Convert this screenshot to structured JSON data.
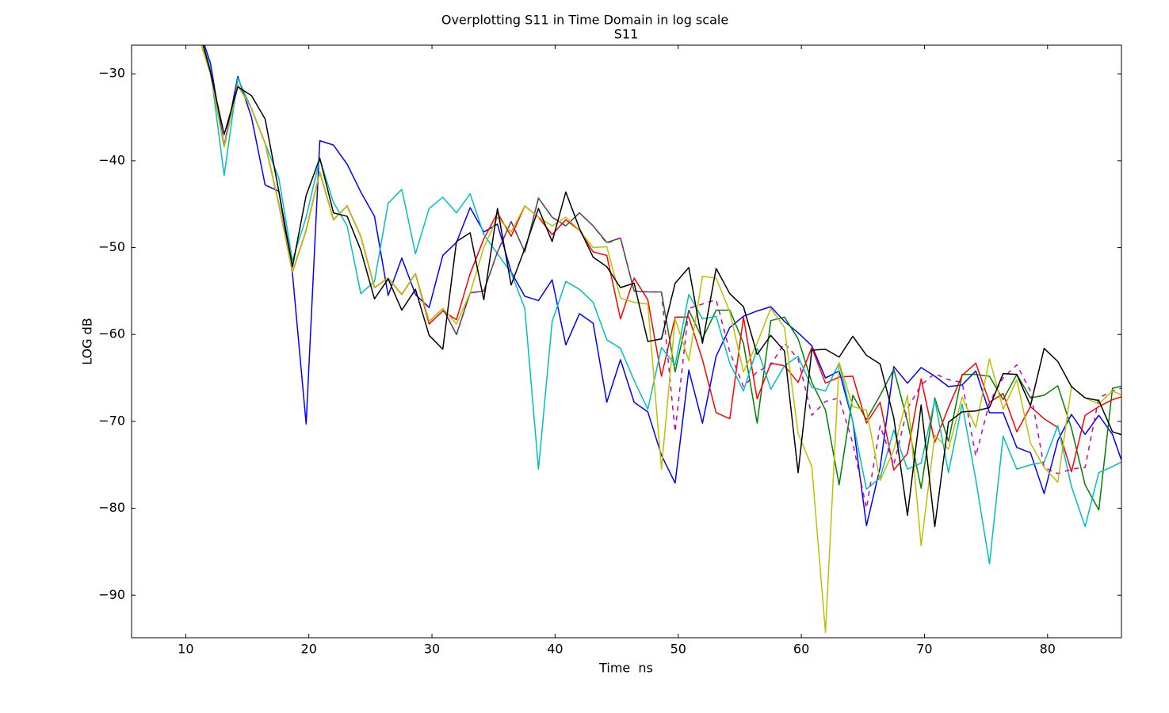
{
  "chart_data": {
    "type": "line",
    "suptitle": "Overplotting S11 in Time Domain in log scale",
    "title": "S11",
    "xlabel": "Time  ns",
    "ylabel": "LOG dB",
    "xlim": [
      5.6,
      86
    ],
    "ylim": [
      -94.9,
      -26.7
    ],
    "xticks": [
      10,
      20,
      30,
      40,
      50,
      60,
      70,
      80
    ],
    "yticks": [
      {
        "value": -30,
        "label": "−30"
      },
      {
        "value": -40,
        "label": "−40"
      },
      {
        "value": -50,
        "label": "−50"
      },
      {
        "value": -60,
        "label": "−60"
      },
      {
        "value": -70,
        "label": "−70"
      },
      {
        "value": -80,
        "label": "−80"
      },
      {
        "value": -90,
        "label": "−90"
      }
    ],
    "x": [
      10.9,
      12.01,
      13.12,
      14.23,
      15.34,
      16.45,
      17.56,
      18.67,
      19.78,
      20.89,
      22.0,
      23.11,
      24.22,
      25.33,
      26.44,
      27.55,
      28.66,
      29.77,
      30.88,
      31.99,
      33.1,
      34.21,
      35.32,
      36.43,
      37.54,
      38.65,
      39.76,
      40.87,
      41.98,
      43.09,
      44.2,
      45.31,
      46.42,
      47.53,
      48.64,
      49.75,
      50.86,
      51.97,
      53.08,
      54.19,
      55.3,
      56.41,
      57.52,
      58.63,
      59.74,
      60.85,
      61.96,
      63.07,
      64.18,
      65.29,
      66.4,
      67.51,
      68.62,
      69.73,
      70.84,
      71.95,
      73.06,
      74.17,
      75.28,
      76.39,
      77.5,
      78.61,
      79.72,
      80.83,
      81.94,
      83.05,
      84.16,
      85.27,
      86.38
    ],
    "series": [
      {
        "color": "#0000ff",
        "linestyle": "solid",
        "values": [
          -24,
          -28.8,
          -38.3,
          -30.3,
          -35,
          -42.8,
          -43.5,
          -53,
          -70.3,
          -37.7,
          -38.2,
          -40.4,
          -43.6,
          -46.4,
          -55.5,
          -51.2,
          -55.4,
          -56.9,
          -50.9,
          -49.4,
          -45.4,
          -48.2,
          -47.3,
          -52.8,
          -55.6,
          -56.1,
          -53.7,
          -61.2,
          -57.6,
          -58.7,
          -67.8,
          -62.9,
          -67.8,
          -68.9,
          -73.9,
          -77.1,
          -64.1,
          -70.2,
          -62.5,
          -59.2,
          -57.9,
          -57.3,
          -56.8,
          -58.5,
          -59.8,
          -61.3,
          -65,
          -64.2,
          -70,
          -82,
          -75.3,
          -63.7,
          -65.6,
          -63.8,
          -64.8,
          -66,
          -65.8,
          -64.2,
          -69,
          -69,
          -73,
          -73.6,
          -78.3,
          -72.2,
          -69.2,
          -71.5,
          -69.3,
          -71.5,
          -76
        ]
      },
      {
        "color": "#008000",
        "linestyle": "solid",
        "values": [
          -25,
          -30,
          -38.4,
          -31.3,
          -34,
          -38,
          -45,
          -52.8,
          -48,
          -41.3,
          -46.8,
          -45.2,
          -48.7,
          -54.6,
          -53.5,
          -55.4,
          -53,
          -58.5,
          -57,
          -60,
          -55.2,
          -55,
          -50.5,
          -47,
          -50.5,
          -44.3,
          -46.5,
          -47.5,
          -46,
          -47.5,
          -49.4,
          -48.9,
          -55,
          -55.1,
          -55.1,
          -64.3,
          -57.2,
          -60.5,
          -57.2,
          -57.2,
          -61,
          -70.2,
          -58.4,
          -58,
          -60.5,
          -65.5,
          -68.7,
          -77.3,
          -67,
          -69.8,
          -67,
          -64,
          -70,
          -77.7,
          -67.3,
          -72.3,
          -64.6,
          -64.6,
          -64.8,
          -67.5,
          -64.6,
          -67.3,
          -67,
          -65.9,
          -70.8,
          -77.3,
          -80.2,
          -66.2,
          -65.8
        ]
      },
      {
        "color": "#ff0000",
        "linestyle": "solid",
        "values": [
          -25,
          -30,
          -38.4,
          -31.3,
          -34,
          -38,
          -45,
          -52.8,
          -48,
          -41.3,
          -46.8,
          -45.2,
          -48.7,
          -54.6,
          -53.5,
          -55.4,
          -53,
          -58.8,
          -57.3,
          -58.3,
          -53,
          -49,
          -46,
          -48.7,
          -45.2,
          -46.5,
          -48.5,
          -46.8,
          -48,
          -50.5,
          -50.9,
          -58.2,
          -53.5,
          -56,
          -64.8,
          -58,
          -58,
          -62.9,
          -69,
          -69.7,
          -58,
          -67.4,
          -63.3,
          -63.6,
          -65.5,
          -61.5,
          -65.6,
          -64.9,
          -64.8,
          -70.2,
          -67.8,
          -75.6,
          -73.7,
          -65.1,
          -72.4,
          -68.4,
          -64.7,
          -63.3,
          -67.8,
          -66.8,
          -71.2,
          -68.3,
          -69.7,
          -70.7,
          -75.8,
          -69.3,
          -68.3,
          -67.5,
          -67
        ]
      },
      {
        "color": "#00bfbf",
        "linestyle": "solid",
        "values": [
          -24,
          -29.5,
          -41.7,
          -30.5,
          -34,
          -38,
          -42,
          -51.5,
          -46.5,
          -39.8,
          -44.8,
          -47.5,
          -55.3,
          -53.9,
          -44.9,
          -43.3,
          -50.7,
          -45.5,
          -44.2,
          -46,
          -43.8,
          -48.5,
          -50.7,
          -52.9,
          -57,
          -75.5,
          -58.5,
          -53.9,
          -54.8,
          -56.3,
          -60.6,
          -61.6,
          -65.3,
          -68.6,
          -61.5,
          -63.5,
          -55.4,
          -58.2,
          -57.9,
          -63.3,
          -66.5,
          -61.6,
          -66.3,
          -63.6,
          -62.5,
          -66.1,
          -66.5,
          -63.3,
          -70,
          -77.8,
          -76.5,
          -71,
          -75.5,
          -74.8,
          -67.5,
          -75.9,
          -68,
          -76.7,
          -86.4,
          -71.7,
          -75.5,
          -75,
          -74.7,
          -70.5,
          -77.5,
          -82.1,
          -75.9,
          -75.2,
          -74.4
        ]
      },
      {
        "color": "#bf00bf",
        "linestyle": "dashed",
        "values": [
          -25,
          -30,
          -38.4,
          -31.3,
          -34,
          -38,
          -45,
          -52.8,
          -48,
          -41.3,
          -46.8,
          -45.2,
          -48.7,
          -54.6,
          -53.5,
          -55.4,
          -53,
          -58.5,
          -57,
          -60,
          -55.2,
          -55,
          -50.5,
          -47,
          -50.5,
          -44.3,
          -46.5,
          -47.5,
          -46,
          -47.5,
          -49.5,
          -48.9,
          -55,
          -55.1,
          -55.1,
          -71.2,
          -57,
          -56.5,
          -56,
          -62,
          -66,
          -64.3,
          -63.5,
          -61,
          -62.8,
          -69.3,
          -67.7,
          -67.3,
          -72.5,
          -80,
          -70.5,
          -75,
          -68.5,
          -65.8,
          -64.5,
          -65.2,
          -65.5,
          -74,
          -67.8,
          -65,
          -63.5,
          -66.5,
          -75.3,
          -76,
          -75.5,
          -75.3,
          -67.3,
          -66.5,
          -66
        ]
      },
      {
        "color": "#bfbf00",
        "linestyle": "solid",
        "values": [
          -25,
          -30,
          -38.4,
          -31.3,
          -34,
          -38,
          -45,
          -52.8,
          -48,
          -41.3,
          -46.8,
          -45.2,
          -48.7,
          -54.6,
          -53.5,
          -55.4,
          -53,
          -58.5,
          -57,
          -58.8,
          -55.2,
          -50,
          -46.5,
          -48.2,
          -45.2,
          -46.5,
          -47.5,
          -46.5,
          -48,
          -50,
          -49.9,
          -55.8,
          -56.3,
          -56.5,
          -75.5,
          -58.2,
          -63,
          -53.3,
          -53.5,
          -57.4,
          -64.3,
          -61,
          -57,
          -59.2,
          -71.4,
          -75.2,
          -94.3,
          -63.2,
          -68.3,
          -68.7,
          -76.8,
          -73.3,
          -67,
          -84.3,
          -71.6,
          -73.2,
          -67.2,
          -70.7,
          -62.8,
          -68.6,
          -65.2,
          -72.5,
          -75.3,
          -77,
          -66,
          -67.3,
          -68,
          -66.5,
          -67.2
        ]
      },
      {
        "color": "#000000",
        "linestyle": "solid",
        "values": [
          -24,
          -29.8,
          -37,
          -31.5,
          -32.5,
          -35.2,
          -43.5,
          -52.2,
          -44,
          -39.7,
          -46,
          -46.4,
          -50.3,
          -55.9,
          -53.6,
          -57.2,
          -54.8,
          -60.1,
          -61.7,
          -49.3,
          -48.3,
          -56,
          -45.5,
          -54.3,
          -50.1,
          -45.5,
          -49.3,
          -43.6,
          -47.8,
          -51.1,
          -52.2,
          -54.6,
          -54.1,
          -60.8,
          -60.5,
          -54.1,
          -52.3,
          -61,
          -52.4,
          -55.3,
          -56.8,
          -62.3,
          -60.1,
          -61.9,
          -75.9,
          -61.8,
          -61.7,
          -62.6,
          -60.2,
          -62.4,
          -63.4,
          -69.6,
          -80.8,
          -68.1,
          -82.1,
          -70.1,
          -68.9,
          -68.8,
          -68.4,
          -64.5,
          -64.6,
          -68.2,
          -61.6,
          -63.1,
          -66,
          -67.3,
          -67.6,
          -71.2,
          -71.7
        ]
      }
    ]
  }
}
